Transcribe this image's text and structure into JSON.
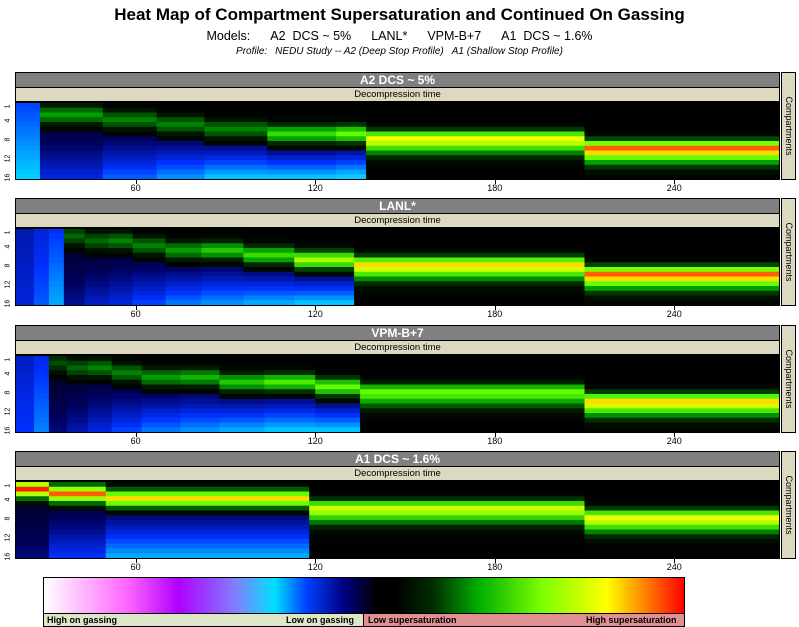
{
  "title": "Heat Map of Compartment Supersaturation and Continued On Gassing",
  "models_line": {
    "prefix": "Models:",
    "items": [
      "A2  DCS ~ 5%",
      "LANL*",
      "VPM-B+7",
      "A1  DCS ~ 1.6%"
    ]
  },
  "profile_line": {
    "prefix": "Profile:",
    "a2": "NEDU Study -- A2 (Deep Stop Profile)",
    "a1": "A1 (Shallow Stop Profile)"
  },
  "legend": {
    "labels": [
      "High on gassing",
      "Low on gassing",
      "Low supersaturation",
      "High supersaturation"
    ],
    "colors_low_to_high": [
      "#ffffff",
      "#ff66ff",
      "#b000ff",
      "#00e0ff",
      "#0040ff",
      "#000080",
      "#000000",
      "#00b000",
      "#80ff00",
      "#ffff00",
      "#ff0000"
    ]
  },
  "chart_data": [
    {
      "type": "heatmap",
      "title": "A2  DCS ~ 5%",
      "xlabel": "Decompression time",
      "ylabel": "Compartments",
      "xlim": [
        20,
        275
      ],
      "x_ticks": [
        60,
        120,
        180,
        240
      ],
      "y_ticks": [
        "1",
        "4",
        "8",
        "12",
        "16"
      ],
      "stops": [
        {
          "start": 20,
          "end": 28,
          "kind": "ongas",
          "peak_row": 15,
          "intensity": 0.35
        },
        {
          "start": 28,
          "end": 49,
          "kind": "mixed",
          "sat_peak_row": 2,
          "sat_intensity": 0.35,
          "ongas_intensity": 0.55
        },
        {
          "start": 49,
          "end": 67,
          "kind": "mixed",
          "sat_peak_row": 3,
          "sat_intensity": 0.3,
          "ongas_intensity": 0.7
        },
        {
          "start": 67,
          "end": 83,
          "kind": "mixed",
          "sat_peak_row": 4,
          "sat_intensity": 0.3,
          "ongas_intensity": 0.8
        },
        {
          "start": 83,
          "end": 104,
          "kind": "mixed",
          "sat_peak_row": 5,
          "sat_intensity": 0.3,
          "ongas_intensity": 0.9
        },
        {
          "start": 104,
          "end": 127,
          "kind": "mixed",
          "sat_peak_row": 6,
          "sat_intensity": 0.5,
          "ongas_intensity": 0.9
        },
        {
          "start": 127,
          "end": 137,
          "kind": "mixed",
          "sat_peak_row": 6,
          "sat_intensity": 0.6,
          "ongas_intensity": 0.95
        },
        {
          "start": 137,
          "end": 210,
          "kind": "sat",
          "sat_peak_row": 7,
          "sat_intensity": 0.8
        },
        {
          "start": 210,
          "end": 275,
          "kind": "sat",
          "sat_peak_row": 9,
          "sat_intensity": 0.95
        }
      ]
    },
    {
      "type": "heatmap",
      "title": "LANL*",
      "xlabel": "Decompression time",
      "ylabel": "Compartments",
      "xlim": [
        20,
        275
      ],
      "x_ticks": [
        60,
        120,
        180,
        240
      ],
      "y_ticks": [
        "1",
        "4",
        "8",
        "12",
        "16"
      ],
      "stops": [
        {
          "start": 20,
          "end": 26,
          "kind": "ongas",
          "peak_row": 15,
          "intensity": 0.1
        },
        {
          "start": 26,
          "end": 31,
          "kind": "ongas",
          "peak_row": 15,
          "intensity": 0.2
        },
        {
          "start": 31,
          "end": 36,
          "kind": "ongas",
          "peak_row": 15,
          "intensity": 0.3
        },
        {
          "start": 36,
          "end": 43,
          "kind": "mixed",
          "sat_peak_row": 1,
          "sat_intensity": 0.25,
          "ongas_intensity": 0.4
        },
        {
          "start": 43,
          "end": 51,
          "kind": "mixed",
          "sat_peak_row": 2,
          "sat_intensity": 0.25,
          "ongas_intensity": 0.5
        },
        {
          "start": 51,
          "end": 59,
          "kind": "mixed",
          "sat_peak_row": 2,
          "sat_intensity": 0.3,
          "ongas_intensity": 0.55
        },
        {
          "start": 59,
          "end": 70,
          "kind": "mixed",
          "sat_peak_row": 3,
          "sat_intensity": 0.3,
          "ongas_intensity": 0.65
        },
        {
          "start": 70,
          "end": 82,
          "kind": "mixed",
          "sat_peak_row": 4,
          "sat_intensity": 0.35,
          "ongas_intensity": 0.75
        },
        {
          "start": 82,
          "end": 96,
          "kind": "mixed",
          "sat_peak_row": 4,
          "sat_intensity": 0.45,
          "ongas_intensity": 0.8
        },
        {
          "start": 96,
          "end": 113,
          "kind": "mixed",
          "sat_peak_row": 5,
          "sat_intensity": 0.5,
          "ongas_intensity": 0.85
        },
        {
          "start": 113,
          "end": 133,
          "kind": "mixed",
          "sat_peak_row": 6,
          "sat_intensity": 0.7,
          "ongas_intensity": 0.9
        },
        {
          "start": 133,
          "end": 210,
          "kind": "sat",
          "sat_peak_row": 7,
          "sat_intensity": 0.85
        },
        {
          "start": 210,
          "end": 275,
          "kind": "sat",
          "sat_peak_row": 9,
          "sat_intensity": 0.95
        }
      ]
    },
    {
      "type": "heatmap",
      "title": "VPM-B+7",
      "xlabel": "Decompression time",
      "ylabel": "Compartments",
      "xlim": [
        20,
        275
      ],
      "x_ticks": [
        60,
        120,
        180,
        240
      ],
      "y_ticks": [
        "1",
        "4",
        "8",
        "12",
        "16"
      ],
      "stops": [
        {
          "start": 20,
          "end": 26,
          "kind": "ongas",
          "peak_row": 15,
          "intensity": 0.15
        },
        {
          "start": 26,
          "end": 31,
          "kind": "ongas",
          "peak_row": 15,
          "intensity": 0.25
        },
        {
          "start": 31,
          "end": 37,
          "kind": "mixed",
          "sat_peak_row": 1,
          "sat_intensity": 0.2,
          "ongas_intensity": 0.35
        },
        {
          "start": 37,
          "end": 44,
          "kind": "mixed",
          "sat_peak_row": 2,
          "sat_intensity": 0.25,
          "ongas_intensity": 0.45
        },
        {
          "start": 44,
          "end": 52,
          "kind": "mixed",
          "sat_peak_row": 2,
          "sat_intensity": 0.3,
          "ongas_intensity": 0.55
        },
        {
          "start": 52,
          "end": 62,
          "kind": "mixed",
          "sat_peak_row": 3,
          "sat_intensity": 0.3,
          "ongas_intensity": 0.65
        },
        {
          "start": 62,
          "end": 75,
          "kind": "mixed",
          "sat_peak_row": 4,
          "sat_intensity": 0.35,
          "ongas_intensity": 0.75
        },
        {
          "start": 75,
          "end": 88,
          "kind": "mixed",
          "sat_peak_row": 4,
          "sat_intensity": 0.4,
          "ongas_intensity": 0.8
        },
        {
          "start": 88,
          "end": 103,
          "kind": "mixed",
          "sat_peak_row": 5,
          "sat_intensity": 0.45,
          "ongas_intensity": 0.85
        },
        {
          "start": 103,
          "end": 120,
          "kind": "mixed",
          "sat_peak_row": 5,
          "sat_intensity": 0.55,
          "ongas_intensity": 0.9
        },
        {
          "start": 120,
          "end": 135,
          "kind": "mixed",
          "sat_peak_row": 6,
          "sat_intensity": 0.6,
          "ongas_intensity": 0.9
        },
        {
          "start": 135,
          "end": 210,
          "kind": "sat",
          "sat_peak_row": 7,
          "sat_intensity": 0.6
        },
        {
          "start": 210,
          "end": 275,
          "kind": "sat",
          "sat_peak_row": 9,
          "sat_intensity": 0.85
        }
      ]
    },
    {
      "type": "heatmap",
      "title": "A1  DCS ~ 1.6%",
      "xlabel": "Decompression time",
      "ylabel": "Compartments",
      "xlim": [
        20,
        275
      ],
      "x_ticks": [
        60,
        120,
        180,
        240
      ],
      "y_ticks": [
        "1",
        "4",
        "8",
        "12",
        "16"
      ],
      "stops": [
        {
          "start": 20,
          "end": 31,
          "kind": "mixed",
          "sat_peak_row": 1,
          "sat_intensity": 1.0,
          "ongas_intensity": 0.35
        },
        {
          "start": 31,
          "end": 50,
          "kind": "mixed",
          "sat_peak_row": 2,
          "sat_intensity": 0.95,
          "ongas_intensity": 0.6
        },
        {
          "start": 50,
          "end": 118,
          "kind": "mixed",
          "sat_peak_row": 3,
          "sat_intensity": 0.85,
          "ongas_intensity": 0.85
        },
        {
          "start": 118,
          "end": 210,
          "kind": "sat",
          "sat_peak_row": 5,
          "sat_intensity": 0.75
        },
        {
          "start": 210,
          "end": 275,
          "kind": "sat",
          "sat_peak_row": 7,
          "sat_intensity": 0.8
        }
      ]
    }
  ]
}
